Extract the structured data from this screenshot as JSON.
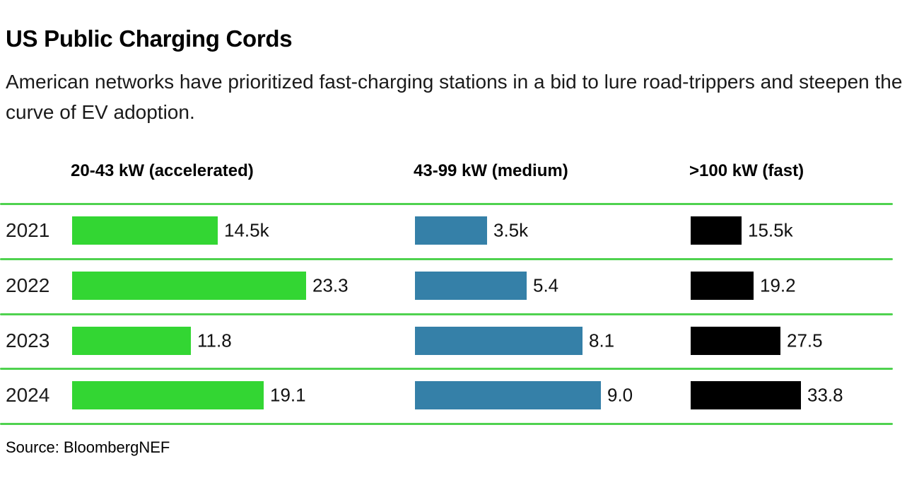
{
  "header": {
    "title": "US Public Charging Cords",
    "subtitle": "American networks have prioritized fast-charging stations in a bid to lure road-trippers and steepen the curve of EV adoption."
  },
  "source": "Source: BloombergNEF",
  "colors": {
    "accelerated_green": "#33d633",
    "medium_blue": "#3580a8",
    "fast_black": "#000000",
    "rule_green": "#4fd24f"
  },
  "chart_data": {
    "type": "bar",
    "orientation": "horizontal",
    "title": "US Public Charging Cords",
    "subtitle": "American networks have prioritized fast-charging stations in a bid to lure road-trippers and steepen the curve of EV adoption.",
    "source": "Source: BloombergNEF",
    "categories": [
      "2021",
      "2022",
      "2023",
      "2024"
    ],
    "unit": "thousand charging cords",
    "grid": "horizontal green rules between year rows",
    "legend_position": "column headers above chart",
    "series": [
      {
        "name": "20-43 kW (accelerated)",
        "color": "#33d633",
        "values": [
          14.5,
          23.3,
          11.8,
          19.1
        ],
        "labels": [
          "14.5k",
          "23.3",
          "11.8",
          "19.1"
        ],
        "axis_max": 23.3
      },
      {
        "name": "43-99 kW (medium)",
        "color": "#3580a8",
        "values": [
          3.5,
          5.4,
          8.1,
          9.0
        ],
        "labels": [
          "3.5k",
          "5.4",
          "8.1",
          "9.0"
        ],
        "axis_max": 9.0
      },
      {
        "name": ">100 kW (fast)",
        "color": "#000000",
        "values": [
          15.5,
          19.2,
          27.5,
          33.8
        ],
        "labels": [
          "15.5k",
          "19.2",
          "27.5",
          "33.8"
        ],
        "axis_max": 33.8
      }
    ]
  }
}
